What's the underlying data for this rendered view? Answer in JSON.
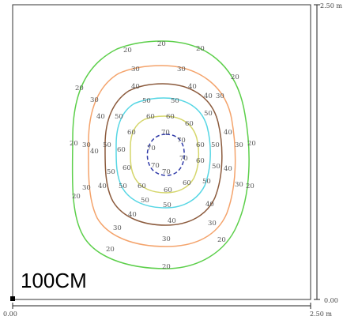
{
  "labels": {
    "distance": "100CM",
    "x_start": "0.00",
    "x_end": "2.50 m",
    "y_top": "2.50 m",
    "y_bottom": "0.00"
  },
  "contours": [
    {
      "value": "20",
      "color": "#5ccf4a"
    },
    {
      "value": "30",
      "color": "#f4a36b"
    },
    {
      "value": "40",
      "color": "#8b5a3c"
    },
    {
      "value": "50",
      "color": "#56d6e4"
    },
    {
      "value": "60",
      "color": "#d5d66a"
    },
    {
      "value": "70",
      "color": "#2f3aa8"
    }
  ]
}
